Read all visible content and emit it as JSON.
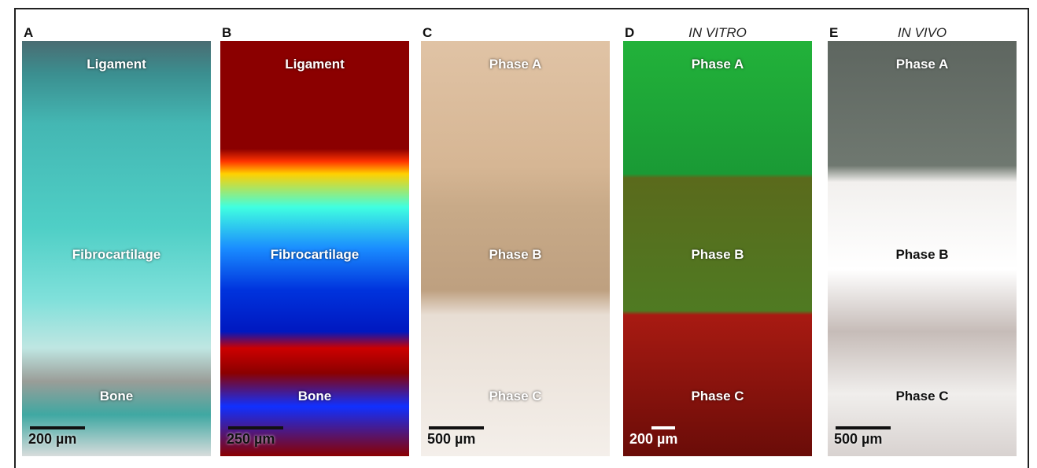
{
  "panels": [
    {
      "letter": "A",
      "regions": [
        "Ligament",
        "Fibrocartilage",
        "Bone"
      ],
      "scale_bar": "200 µm"
    },
    {
      "letter": "B",
      "regions": [
        "Ligament",
        "Fibrocartilage",
        "Bone"
      ],
      "scale_bar": "250 µm"
    },
    {
      "letter": "C",
      "regions": [
        "Phase A",
        "Phase B",
        "Phase C"
      ],
      "scale_bar": "500 µm"
    },
    {
      "letter": "D",
      "title": "IN VITRO",
      "regions": [
        "Phase A",
        "Phase B",
        "Phase C"
      ],
      "scale_bar": "200 µm"
    },
    {
      "letter": "E",
      "title": "IN VIVO",
      "regions": [
        "Phase A",
        "Phase B",
        "Phase C"
      ],
      "scale_bar": "500 µm"
    }
  ]
}
